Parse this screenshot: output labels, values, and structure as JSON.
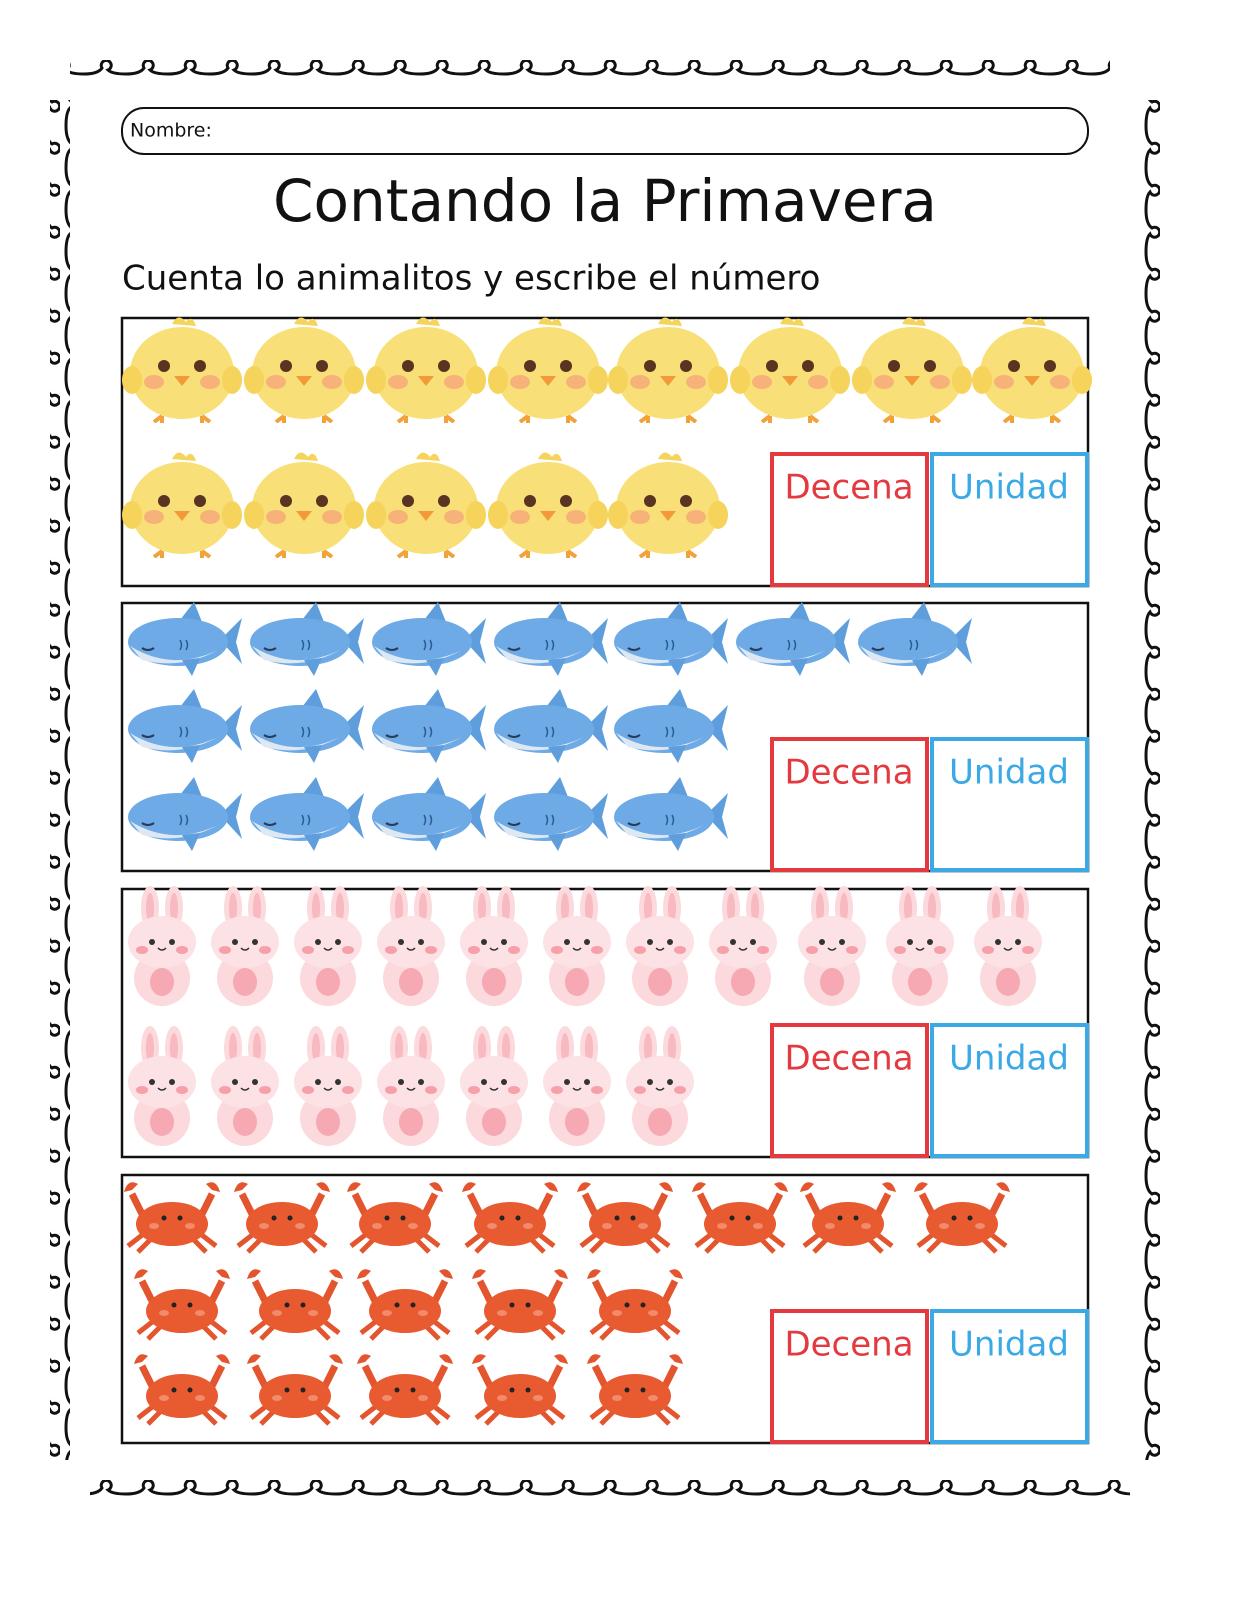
{
  "header": {
    "name_label": "Nombre:",
    "title": "Contando la Primavera",
    "instruction": "Cuenta lo animalitos y escribe el número"
  },
  "sections": [
    {
      "tens_label": "Decena",
      "units_label": "Unidad"
    },
    {
      "tens_label": "Decena",
      "units_label": "Unidad"
    },
    {
      "tens_label": "Decena",
      "units_label": "Unidad"
    },
    {
      "tens_label": "Decena",
      "units_label": "Unidad"
    }
  ]
}
